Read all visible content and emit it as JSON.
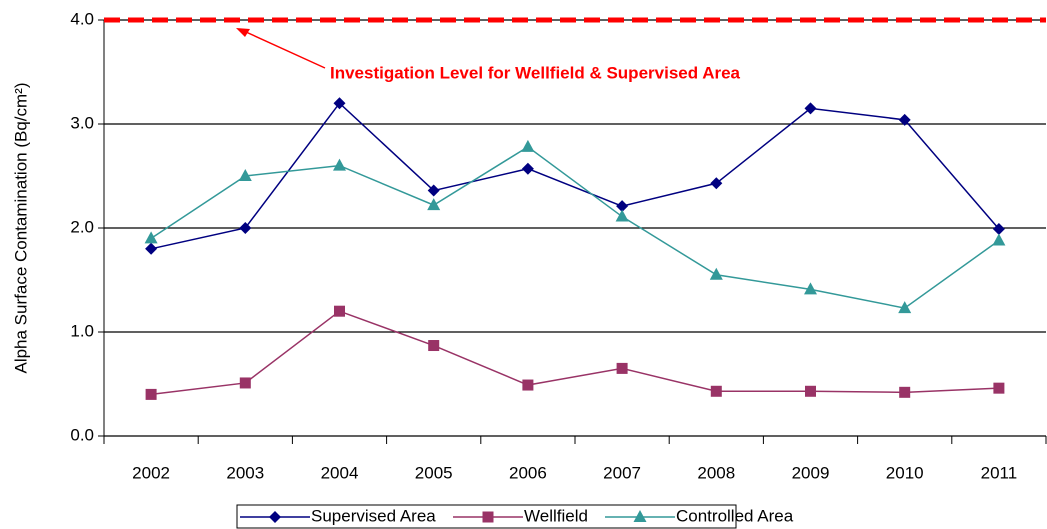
{
  "chart_data": {
    "type": "line",
    "y_label": "Alpha Surface Contamination (Bq/cm²)",
    "categories": [
      "2002",
      "2003",
      "2004",
      "2005",
      "2006",
      "2007",
      "2008",
      "2009",
      "2010",
      "2011"
    ],
    "series": [
      {
        "name": "Supervised Area",
        "color": "#000080",
        "marker": "diamond",
        "values": [
          1.8,
          2.0,
          3.2,
          2.36,
          2.57,
          2.21,
          2.43,
          3.15,
          3.04,
          1.99
        ]
      },
      {
        "name": "Wellfield",
        "color": "#993366",
        "marker": "square",
        "values": [
          0.4,
          0.51,
          1.2,
          0.87,
          0.49,
          0.65,
          0.43,
          0.43,
          0.42,
          0.46
        ]
      },
      {
        "name": "Controlled Area",
        "color": "#339999",
        "marker": "triangle",
        "values": [
          1.9,
          2.5,
          2.6,
          2.22,
          2.78,
          2.11,
          1.55,
          1.41,
          1.23,
          1.88
        ]
      }
    ],
    "reference_line": {
      "value": 4.0,
      "label": "Investigation Level for Wellfield & Supervised Area",
      "color": "#ff0000"
    },
    "ylim": [
      0,
      4
    ],
    "yticks": [
      {
        "value": 0,
        "label": "0.0"
      },
      {
        "value": 1,
        "label": "1.0"
      },
      {
        "value": 2,
        "label": "2.0"
      },
      {
        "value": 3,
        "label": "3.0"
      },
      {
        "value": 4,
        "label": "4.0"
      }
    ],
    "grid": true
  }
}
